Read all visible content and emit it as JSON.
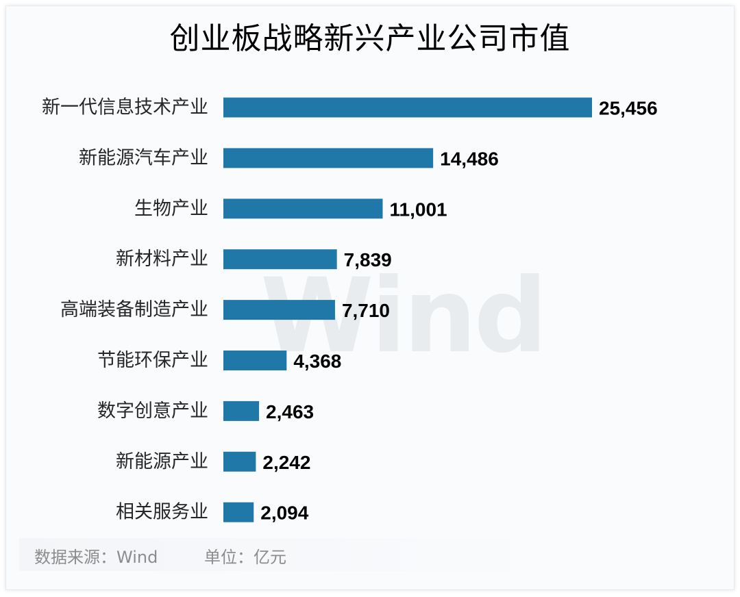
{
  "chart_data": {
    "type": "bar",
    "orientation": "horizontal",
    "title": "创业板战略新兴产业公司市值",
    "categories": [
      "新一代信息技术产业",
      "新能源汽车产业",
      "生物产业",
      "新材料产业",
      "高端装备制造产业",
      "节能环保产业",
      "数字创意产业",
      "新能源产业",
      "相关服务业"
    ],
    "values": [
      25456,
      14486,
      11001,
      7839,
      7710,
      4368,
      2463,
      2242,
      2094
    ],
    "value_labels": [
      "25,456",
      "14,486",
      "11,001",
      "7,839",
      "7,710",
      "4,368",
      "2,463",
      "2,242",
      "2,094"
    ],
    "xlim": [
      0,
      25456
    ],
    "grid": false,
    "legend": "none",
    "bar_color": "#1f78a8"
  },
  "watermark": "Wind",
  "footer": {
    "source": "数据来源：Wind",
    "unit": "单位：亿元"
  }
}
